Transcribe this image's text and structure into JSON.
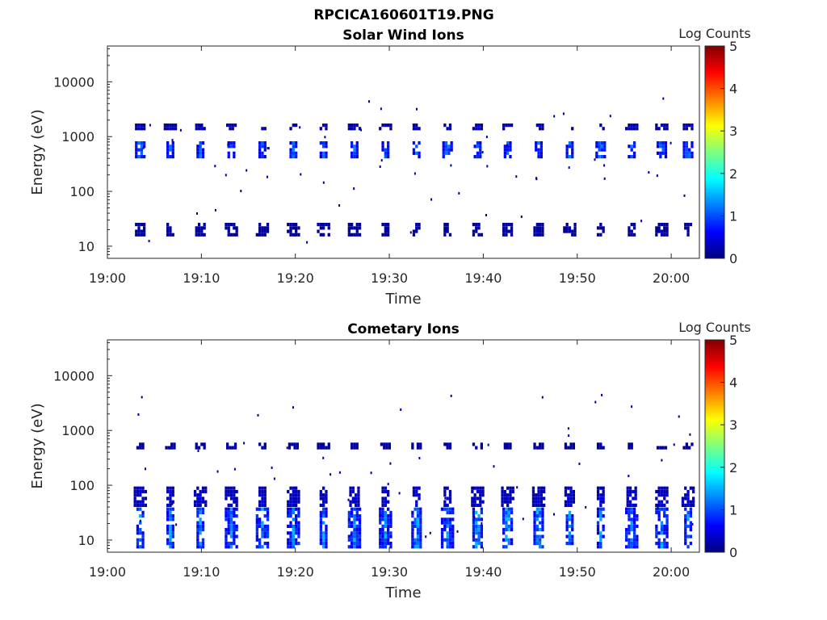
{
  "figure_title": "RPCICA160601T19.PNG",
  "colormap_stops": [
    "#00007f",
    "#0000ff",
    "#007fff",
    "#00ffff",
    "#7fff7f",
    "#ffff00",
    "#ff7f00",
    "#ff0000",
    "#7f0000"
  ],
  "chart_data": [
    {
      "type": "heatmap",
      "title": "Solar Wind Ions",
      "xlabel": "Time",
      "ylabel": "Energy (eV)",
      "x_ticks": [
        "19:00",
        "19:10",
        "19:20",
        "19:30",
        "19:40",
        "19:50",
        "20:00"
      ],
      "x_range_minutes": [
        0,
        63
      ],
      "y_scale": "log",
      "y_ticks": [
        "10",
        "100",
        "1000",
        "10000"
      ],
      "y_range": [
        6,
        45000
      ],
      "colorbar": {
        "label": "Log Counts",
        "range": [
          0,
          5
        ],
        "ticks": [
          "0",
          "1",
          "2",
          "3",
          "4",
          "5"
        ]
      },
      "scan_times_minutes": [
        3.5,
        6.7,
        9.9,
        13.2,
        16.5,
        19.8,
        23.0,
        26.3,
        29.6,
        32.9,
        36.2,
        39.4,
        42.6,
        45.9,
        49.2,
        52.5,
        55.8,
        59.0,
        61.8
      ],
      "bands": [
        {
          "energy_min": 400,
          "energy_max": 800,
          "log_counts": 1.0
        },
        {
          "energy_min": 1300,
          "energy_max": 1700,
          "log_counts": 0.3
        },
        {
          "energy_min": 15,
          "energy_max": 28,
          "log_counts": 0.2
        }
      ]
    },
    {
      "type": "heatmap",
      "title": "Cometary Ions",
      "xlabel": "Time",
      "ylabel": "Energy (eV)",
      "x_ticks": [
        "19:00",
        "19:10",
        "19:20",
        "19:30",
        "19:40",
        "19:50",
        "20:00"
      ],
      "x_range_minutes": [
        0,
        63
      ],
      "y_scale": "log",
      "y_ticks": [
        "10",
        "100",
        "1000",
        "10000"
      ],
      "y_range": [
        6,
        45000
      ],
      "colorbar": {
        "label": "Log Counts",
        "range": [
          0,
          5
        ],
        "ticks": [
          "0",
          "1",
          "2",
          "3",
          "4",
          "5"
        ]
      },
      "scan_times_minutes": [
        3.5,
        6.7,
        9.9,
        13.2,
        16.5,
        19.8,
        23.0,
        26.3,
        29.6,
        32.9,
        36.2,
        39.4,
        42.6,
        45.9,
        49.2,
        52.5,
        55.8,
        59.0,
        61.8
      ],
      "bands": [
        {
          "energy_min": 7,
          "energy_max": 40,
          "log_counts": 1.2
        },
        {
          "energy_min": 40,
          "energy_max": 90,
          "log_counts": 0.4
        },
        {
          "energy_min": 450,
          "energy_max": 620,
          "log_counts": 0.2
        }
      ]
    }
  ]
}
